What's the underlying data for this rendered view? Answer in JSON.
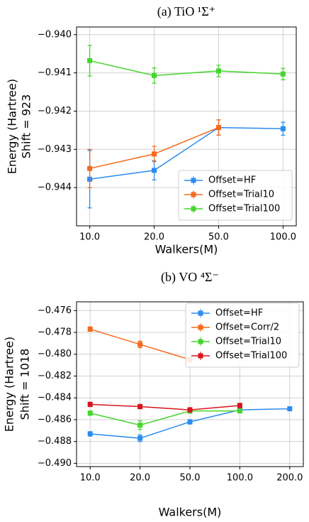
{
  "chart_data": [
    {
      "type": "line",
      "title": "(a) TiO ¹Σ⁺",
      "xlabel": "Walkers(M)",
      "ylabel": [
        "Energy (Hartree)",
        "Shift = 923"
      ],
      "categories": [
        "10.0",
        "20.0",
        "50.0",
        "100.0"
      ],
      "ylim": [
        -0.945,
        -0.9398
      ],
      "yticks": [
        {
          "value": -0.944,
          "label": "−0.944"
        },
        {
          "value": -0.943,
          "label": "−0.943"
        },
        {
          "value": -0.942,
          "label": "−0.942"
        },
        {
          "value": -0.941,
          "label": "−0.941"
        },
        {
          "value": -0.94,
          "label": "−0.940"
        }
      ],
      "grid": true,
      "legend": "lower right",
      "series": [
        {
          "name": "Offset=HF",
          "color": "#2a8cf0",
          "values": [
            -0.94378,
            -0.94355,
            -0.94243,
            -0.94246
          ],
          "errors": [
            0.00075,
            0.00025,
            0.0002,
            0.00017
          ]
        },
        {
          "name": "Offset=Trial10",
          "color": "#f56a1c",
          "values": [
            -0.9435,
            -0.94312,
            -0.94243,
            null
          ],
          "errors": [
            0.0005,
            0.0002,
            0.0002,
            null
          ]
        },
        {
          "name": "Offset=Trial100",
          "color": "#44d62c",
          "values": [
            -0.94068,
            -0.94107,
            -0.94095,
            -0.94103
          ],
          "errors": [
            0.0004,
            0.0002,
            0.00015,
            0.00015
          ]
        }
      ]
    },
    {
      "type": "line",
      "title": "(b) VO ⁴Σ⁻",
      "xlabel": "Walkers(M)",
      "ylabel": [
        "Energy (Hartree)",
        "Shift = 1018"
      ],
      "categories": [
        "10.0",
        "20.0",
        "50.0",
        "100.0",
        "200.0"
      ],
      "ylim": [
        -0.4903,
        -0.4752
      ],
      "yticks": [
        {
          "value": -0.49,
          "label": "−0.490"
        },
        {
          "value": -0.488,
          "label": "−0.488"
        },
        {
          "value": -0.486,
          "label": "−0.486"
        },
        {
          "value": -0.484,
          "label": "−0.484"
        },
        {
          "value": -0.482,
          "label": "−0.482"
        },
        {
          "value": -0.48,
          "label": "−0.480"
        },
        {
          "value": -0.478,
          "label": "−0.478"
        },
        {
          "value": -0.476,
          "label": "−0.476"
        }
      ],
      "grid": true,
      "legend": "upper right",
      "series": [
        {
          "name": "Offset=HF",
          "color": "#2a8cf0",
          "values": [
            -0.4873,
            -0.4877,
            -0.4862,
            -0.4851,
            -0.485
          ],
          "errors": [
            0.0002,
            0.0003,
            0.0002,
            0.0001,
            0.0001
          ]
        },
        {
          "name": "Offset=Corr/2",
          "color": "#f56a1c",
          "values": [
            -0.4777,
            -0.4791,
            -0.4805,
            null,
            null
          ],
          "errors": [
            0.0002,
            0.0003,
            0.0002,
            null,
            null
          ]
        },
        {
          "name": "Offset=Trial10",
          "color": "#44d62c",
          "values": [
            -0.4854,
            -0.4865,
            -0.4852,
            -0.4852,
            null
          ],
          "errors": [
            0.0002,
            0.0004,
            0.0002,
            0.0001,
            null
          ]
        },
        {
          "name": "Offset=Trial100",
          "color": "#d8141c",
          "values": [
            -0.4846,
            -0.4848,
            -0.4851,
            -0.4847,
            null
          ],
          "errors": [
            0.0002,
            0.0002,
            0.0002,
            0.0002,
            null
          ]
        }
      ]
    }
  ]
}
